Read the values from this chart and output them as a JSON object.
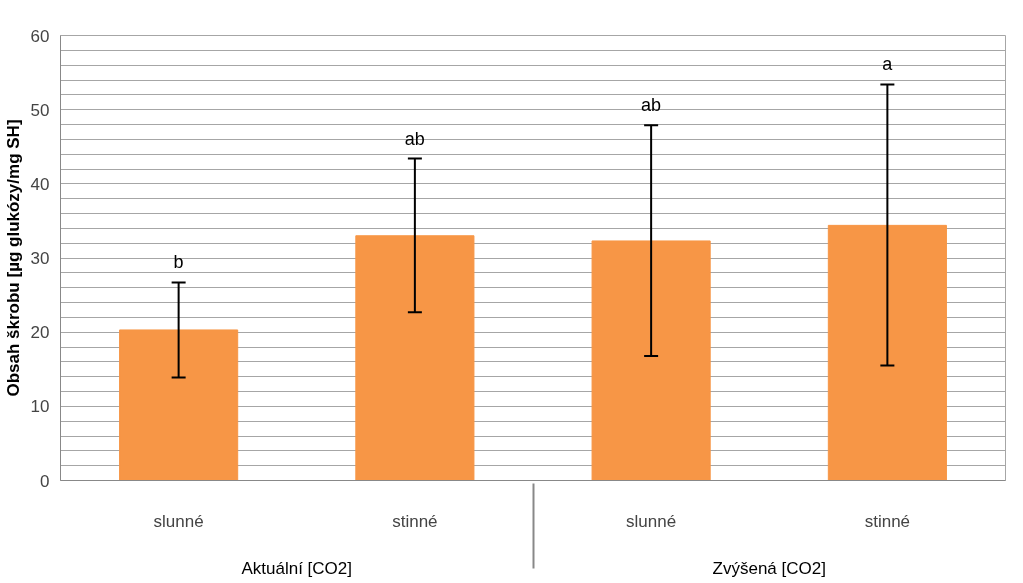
{
  "chart_data": {
    "type": "bar",
    "ylabel": "Obsah škrobu [µg glukózy/mg SH]",
    "categories": [
      "slunné",
      "stinné",
      "slunné",
      "stinné"
    ],
    "values": [
      20.3,
      33.0,
      32.3,
      34.4
    ],
    "errors": [
      [
        13.9,
        26.7
      ],
      [
        22.7,
        43.4
      ],
      [
        16.8,
        47.9
      ],
      [
        15.5,
        53.4
      ]
    ],
    "color": "#f79646",
    "annotations": [
      "b",
      "ab",
      "ab",
      "a",
      "Aktuální [CO2]",
      "Zvýšená [CO2]"
    ],
    "ylim": [
      0,
      60
    ],
    "yticks": [
      0,
      {
        "value": 2,
        "label": null
      },
      {
        "value": 4,
        "label": null
      },
      {
        "value": 6,
        "label": null
      },
      {
        "value": 8,
        "label": null
      },
      10,
      {
        "value": 12,
        "label": null
      },
      {
        "value": 14,
        "label": null
      },
      {
        "value": 16,
        "label": null
      },
      {
        "value": 18,
        "label": null
      },
      20,
      {
        "value": 22,
        "label": null
      },
      {
        "value": 24,
        "label": null
      },
      {
        "value": 26,
        "label": null
      },
      {
        "value": 28,
        "label": null
      },
      30,
      {
        "value": 32,
        "label": null
      },
      {
        "value": 34,
        "label": null
      },
      {
        "value": 36,
        "label": null
      },
      {
        "value": 38,
        "label": null
      },
      40,
      {
        "value": 42,
        "label": null
      },
      {
        "value": 44,
        "label": null
      },
      {
        "value": 46,
        "label": null
      },
      {
        "value": 48,
        "label": null
      },
      50,
      {
        "value": 52,
        "label": null
      },
      {
        "value": 54,
        "label": null
      },
      {
        "value": 56,
        "label": null
      },
      {
        "value": 58,
        "label": null
      },
      60
    ],
    "grid": "y"
  }
}
